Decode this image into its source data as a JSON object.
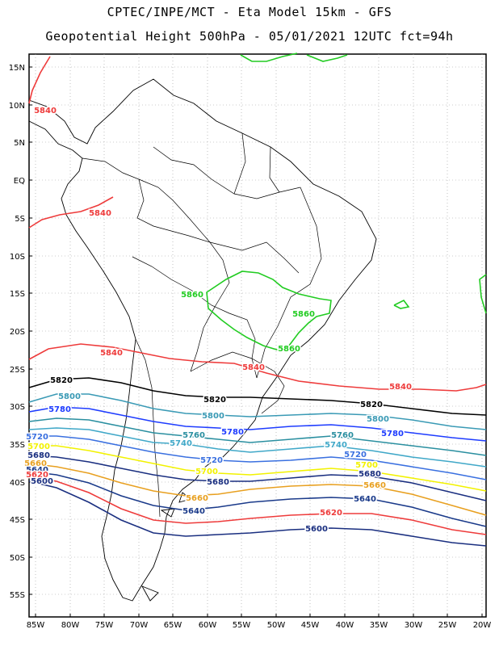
{
  "title_line1": "CPTEC/INPE/MCT  -  Eta Model 15km  -  GFS",
  "title_line2": "Geopotential Height 500hPa - 05/01/2021 12UTC fct=94h",
  "lat_labels": [
    "15N",
    "10N",
    "5N",
    "EQ",
    "5S",
    "10S",
    "15S",
    "20S",
    "25S",
    "30S",
    "35S",
    "40S",
    "45S",
    "50S",
    "55S"
  ],
  "lon_labels": [
    "85W",
    "80W",
    "75W",
    "70W",
    "65W",
    "60W",
    "55W",
    "50W",
    "45W",
    "40W",
    "35W",
    "30W",
    "25W",
    "20W"
  ],
  "contours": [
    {
      "level": "5840",
      "color": "#ee3b3b"
    },
    {
      "level": "5820",
      "color": "#000000"
    },
    {
      "level": "5800",
      "color": "#3a9ab5"
    },
    {
      "level": "5780",
      "color": "#1e3cff"
    },
    {
      "level": "5760",
      "color": "#2a8fa0"
    },
    {
      "level": "5740",
      "color": "#40a8c8"
    },
    {
      "level": "5720",
      "color": "#3a70e0"
    },
    {
      "level": "5700",
      "color": "#f2f200"
    },
    {
      "level": "5680",
      "color": "#1a2f80"
    },
    {
      "level": "5660",
      "color": "#e8a020"
    },
    {
      "level": "5640",
      "color": "#1a3a8a"
    },
    {
      "level": "5620",
      "color": "#ee3b3b"
    },
    {
      "level": "5600",
      "color": "#1a2f80"
    },
    {
      "level": "5860",
      "color": "#22cc22"
    }
  ]
}
